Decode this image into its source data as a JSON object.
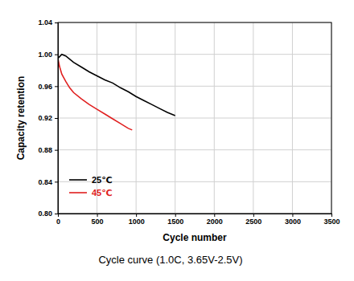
{
  "chart_data": {
    "type": "line",
    "title": "Cycle curve  (1.0C, 3.65V-2.5V)",
    "x_label": "Cycle number",
    "y_label": "Capacity retention",
    "xlim": [
      0,
      3500
    ],
    "ylim": [
      0.8,
      1.04
    ],
    "xticks": [
      0,
      500,
      1000,
      1500,
      2000,
      2500,
      3000,
      3500
    ],
    "yticks": [
      {
        "value": 0.8,
        "label": "0.80"
      },
      0.84,
      0.88,
      0.92,
      0.96,
      {
        "value": 1.0,
        "label": "1.00"
      },
      1.04
    ],
    "grid": true,
    "legend": "lower left",
    "series": [
      {
        "name": "25℃",
        "color": "#000000",
        "x": [
          0,
          50,
          100,
          200,
          300,
          400,
          500,
          600,
          700,
          800,
          900,
          1000,
          1100,
          1200,
          1300,
          1400,
          1500
        ],
        "values": [
          0.995,
          1.0,
          0.998,
          0.99,
          0.984,
          0.978,
          0.973,
          0.968,
          0.964,
          0.958,
          0.953,
          0.947,
          0.942,
          0.937,
          0.932,
          0.927,
          0.923
        ]
      },
      {
        "name": "45℃",
        "color": "#e02020",
        "x": [
          0,
          20,
          50,
          100,
          150,
          200,
          300,
          400,
          500,
          600,
          700,
          800,
          900,
          950
        ],
        "values": [
          0.995,
          0.985,
          0.975,
          0.966,
          0.958,
          0.952,
          0.944,
          0.937,
          0.931,
          0.925,
          0.919,
          0.913,
          0.907,
          0.905
        ]
      }
    ]
  }
}
